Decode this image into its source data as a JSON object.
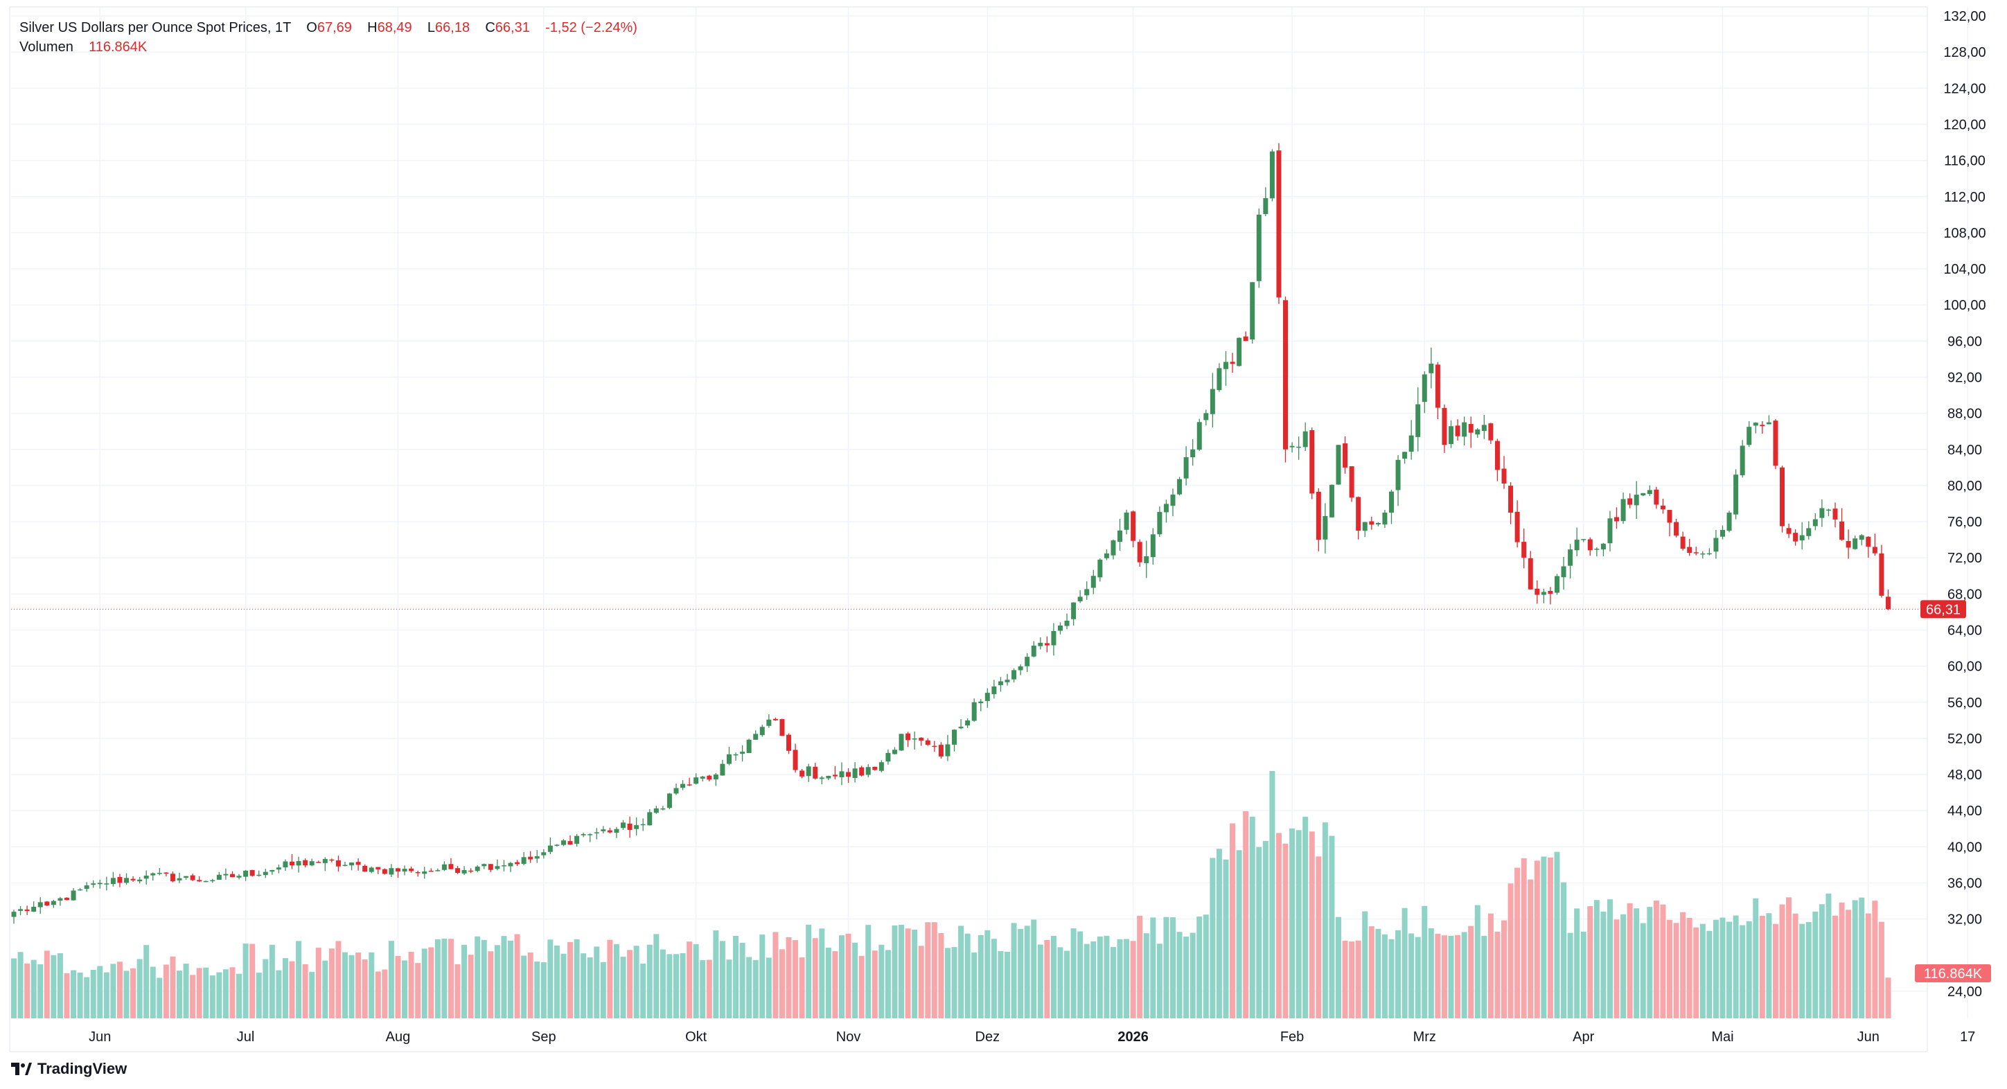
{
  "legend": {
    "title": "Silver US Dollars per Ounce Spot Prices, 1T",
    "o_label": "O",
    "o_value": "67,69",
    "h_label": "H",
    "h_value": "68,49",
    "l_label": "L",
    "l_value": "66,18",
    "c_label": "C",
    "c_value": "66,31",
    "change": "-1,52 (−2.24%)",
    "volume_label": "Volumen",
    "volume_value": "116.864K"
  },
  "brand": {
    "name": "TradingView",
    "icon": "tradingview-logo-icon"
  },
  "colors": {
    "up": "#26a69a",
    "up_candle": "#3d8f5a",
    "down": "#e0292c",
    "vol_up": "#8fd3c7",
    "vol_down": "#f7a6aa",
    "grid": "#f0f3fa"
  },
  "chart_data": {
    "type": "candlestick",
    "title": "Silver US Dollars per Ounce Spot Prices, 1T",
    "ylim": [
      21,
      133
    ],
    "y_ticks": [
      "132,00",
      "128,00",
      "124,00",
      "120,00",
      "116,00",
      "112,00",
      "108,00",
      "104,00",
      "100,00",
      "96,00",
      "92,00",
      "88,00",
      "84,00",
      "80,00",
      "76,00",
      "72,00",
      "68,00",
      "64,00",
      "60,00",
      "56,00",
      "52,00",
      "48,00",
      "44,00",
      "40,00",
      "36,00",
      "32,00",
      "24,00"
    ],
    "x_ticks": [
      {
        "label": "Jun",
        "pos": 13,
        "bold": false
      },
      {
        "label": "Jul",
        "pos": 35,
        "bold": false
      },
      {
        "label": "Aug",
        "pos": 58,
        "bold": false
      },
      {
        "label": "Sep",
        "pos": 80,
        "bold": false
      },
      {
        "label": "Okt",
        "pos": 103,
        "bold": false
      },
      {
        "label": "Nov",
        "pos": 126,
        "bold": false
      },
      {
        "label": "Dez",
        "pos": 147,
        "bold": false
      },
      {
        "label": "2026",
        "pos": 169,
        "bold": true
      },
      {
        "label": "Feb",
        "pos": 193,
        "bold": false
      },
      {
        "label": "Mrz",
        "pos": 213,
        "bold": false
      },
      {
        "label": "Apr",
        "pos": 237,
        "bold": false
      },
      {
        "label": "Mai",
        "pos": 258,
        "bold": false
      },
      {
        "label": "Jun",
        "pos": 280,
        "bold": false
      },
      {
        "label": "17",
        "pos": 295,
        "bold": false
      }
    ],
    "last_price": "66,31",
    "last_volume": "116.864K",
    "keypoints": [
      {
        "i": 0,
        "c": 32.8
      },
      {
        "i": 5,
        "c": 33.5
      },
      {
        "i": 13,
        "c": 36.0
      },
      {
        "i": 20,
        "c": 36.8
      },
      {
        "i": 30,
        "c": 36.3
      },
      {
        "i": 45,
        "c": 38.4
      },
      {
        "i": 55,
        "c": 37.5
      },
      {
        "i": 60,
        "c": 37.3
      },
      {
        "i": 70,
        "c": 37.8
      },
      {
        "i": 78,
        "c": 38.6
      },
      {
        "i": 85,
        "c": 41.2
      },
      {
        "i": 95,
        "c": 42.5
      },
      {
        "i": 100,
        "c": 46.5
      },
      {
        "i": 106,
        "c": 48.0
      },
      {
        "i": 112,
        "c": 52.5
      },
      {
        "i": 115,
        "c": 54.0
      },
      {
        "i": 118,
        "c": 48.5
      },
      {
        "i": 124,
        "c": 47.8
      },
      {
        "i": 130,
        "c": 48.5
      },
      {
        "i": 134,
        "c": 52.5
      },
      {
        "i": 140,
        "c": 50.0
      },
      {
        "i": 145,
        "c": 56.0
      },
      {
        "i": 150,
        "c": 58.5
      },
      {
        "i": 158,
        "c": 64.5
      },
      {
        "i": 163,
        "c": 70.0
      },
      {
        "i": 168,
        "c": 77.0
      },
      {
        "i": 170,
        "c": 71.5
      },
      {
        "i": 175,
        "c": 79.0
      },
      {
        "i": 178,
        "c": 84.0
      },
      {
        "i": 182,
        "c": 93.0
      },
      {
        "i": 186,
        "c": 96.0
      },
      {
        "i": 188,
        "c": 110.0
      },
      {
        "i": 190,
        "c": 117.0
      },
      {
        "i": 192,
        "c": 84.0
      },
      {
        "i": 195,
        "c": 86.0
      },
      {
        "i": 197,
        "c": 74.0
      },
      {
        "i": 200,
        "c": 84.5
      },
      {
        "i": 203,
        "c": 75.0
      },
      {
        "i": 207,
        "c": 77.0
      },
      {
        "i": 212,
        "c": 89.0
      },
      {
        "i": 214,
        "c": 93.5
      },
      {
        "i": 216,
        "c": 84.5
      },
      {
        "i": 219,
        "c": 87.0
      },
      {
        "i": 223,
        "c": 85.0
      },
      {
        "i": 226,
        "c": 77.0
      },
      {
        "i": 229,
        "c": 68.5
      },
      {
        "i": 232,
        "c": 68.0
      },
      {
        "i": 236,
        "c": 74.0
      },
      {
        "i": 239,
        "c": 73.0
      },
      {
        "i": 243,
        "c": 78.5
      },
      {
        "i": 247,
        "c": 79.5
      },
      {
        "i": 252,
        "c": 73.0
      },
      {
        "i": 256,
        "c": 72.5
      },
      {
        "i": 259,
        "c": 77.0
      },
      {
        "i": 262,
        "c": 86.5
      },
      {
        "i": 265,
        "c": 87.0
      },
      {
        "i": 267,
        "c": 75.5
      },
      {
        "i": 270,
        "c": 74.5
      },
      {
        "i": 273,
        "c": 77.5
      },
      {
        "i": 276,
        "c": 74.0
      },
      {
        "i": 279,
        "c": 74.5
      },
      {
        "i": 281,
        "c": 72.5
      },
      {
        "i": 282,
        "c": 67.8
      },
      {
        "i": 283,
        "c": 66.31
      }
    ],
    "volume_range": [
      0,
      200000
    ]
  }
}
